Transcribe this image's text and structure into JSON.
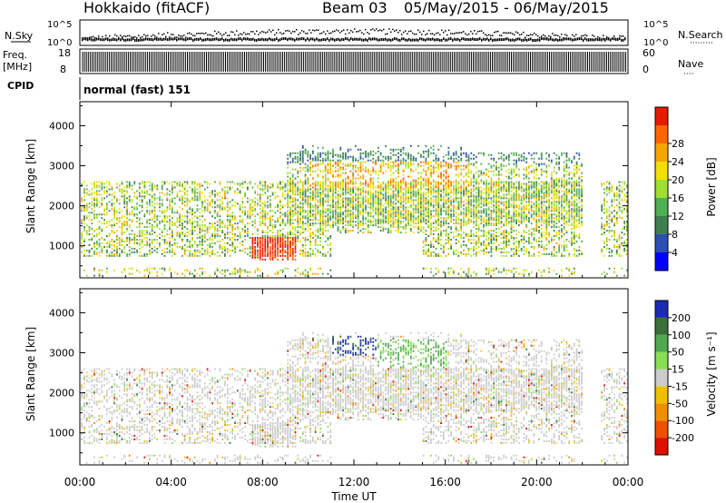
{
  "header": {
    "station": "Hokkaido (fitACF)",
    "beam": "Beam 03",
    "date_range": "05/May/2015 - 06/May/2015"
  },
  "panels": {
    "nsky": {
      "left_label": "N.Sky",
      "right_label": "N.Search",
      "ticks_left": [
        "10^5",
        "10^0"
      ],
      "ticks_right": [
        "10^5",
        "10^0"
      ]
    },
    "freq": {
      "left_label_1": "Freq.",
      "left_label_2": "[MHz]",
      "right_label": "Nave",
      "ticks_left": [
        "18",
        "8"
      ],
      "ticks_right": [
        "60",
        "0"
      ]
    },
    "cpid": {
      "label": "CPID",
      "value": "normal (fast) 151"
    }
  },
  "chart_data": [
    {
      "type": "heatmap",
      "name": "power",
      "ylabel": "Slant Range [km]",
      "ylim": [
        200,
        4600
      ],
      "y_ticks": [
        "1000",
        "2000",
        "3000",
        "4000"
      ],
      "xlim_hours": [
        0,
        24
      ],
      "x_ticks": [
        "00:00",
        "04:00",
        "08:00",
        "12:00",
        "16:00",
        "20:00",
        "00:00"
      ],
      "xlabel": "Time UT",
      "colorbar": {
        "label": "Power [dB]",
        "ticks": [
          "4",
          "8",
          "12",
          "16",
          "20",
          "24",
          "28"
        ],
        "range": [
          0,
          32
        ],
        "colors": [
          "#0000ff",
          "#2c4fb4",
          "#3f7f4f",
          "#4faf52",
          "#9fdf30",
          "#f2e000",
          "#f7a600",
          "#ff6600",
          "#e61a00"
        ]
      }
    },
    {
      "type": "heatmap",
      "name": "velocity",
      "ylabel": "Slant Range [km]",
      "ylim": [
        200,
        4600
      ],
      "y_ticks": [
        "1000",
        "2000",
        "3000",
        "4000"
      ],
      "xlim_hours": [
        0,
        24
      ],
      "x_ticks": [
        "00:00",
        "04:00",
        "08:00",
        "12:00",
        "16:00",
        "20:00",
        "00:00"
      ],
      "xlabel": "Time UT",
      "colorbar": {
        "label": "Velocity [m s⁻¹]",
        "ticks": [
          "200",
          "100",
          "50",
          "15",
          "-15",
          "-50",
          "-100",
          "-200"
        ],
        "colors": [
          "#1a2bb4",
          "#3a6f3a",
          "#4faa4f",
          "#88dd55",
          "#cccccc",
          "#f0c000",
          "#f09000",
          "#f05000",
          "#e01000"
        ]
      }
    }
  ]
}
